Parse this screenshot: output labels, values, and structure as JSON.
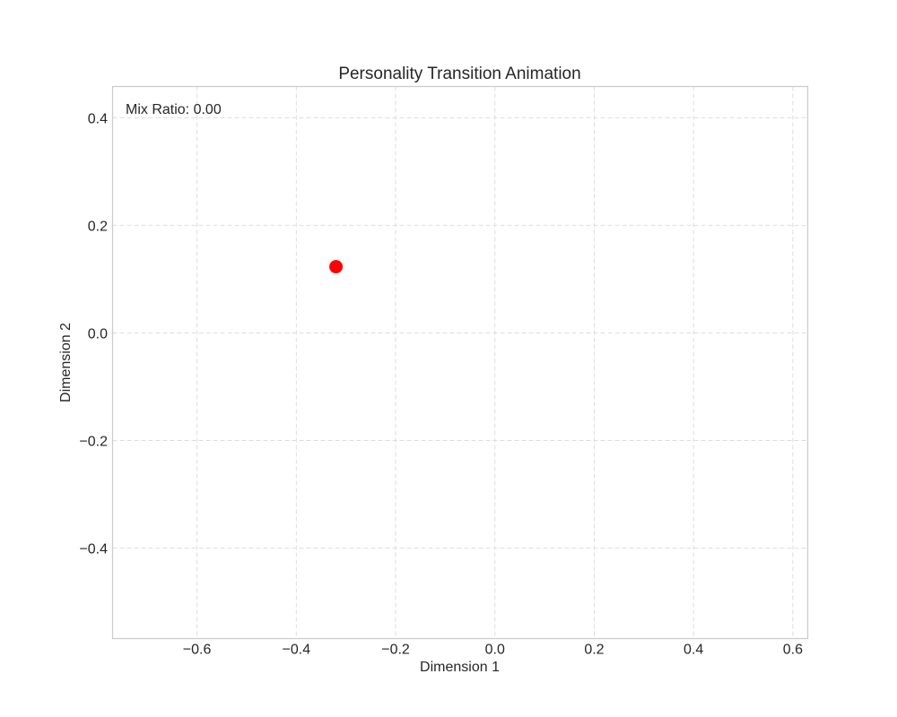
{
  "chart_data": {
    "type": "scatter",
    "title": "Personality Transition Animation",
    "xlabel": "Dimension 1",
    "ylabel": "Dimension 2",
    "xlim": [
      -0.77,
      0.63
    ],
    "ylim": [
      -0.568,
      0.458
    ],
    "xticks": [
      -0.6,
      -0.4,
      -0.2,
      0.0,
      0.2,
      0.4,
      0.6
    ],
    "xtick_labels": [
      "−0.6",
      "−0.4",
      "−0.2",
      "0.0",
      "0.2",
      "0.4",
      "0.6"
    ],
    "yticks": [
      0.4,
      0.2,
      0.0,
      -0.2,
      -0.4
    ],
    "ytick_labels": [
      "0.4",
      "0.2",
      "0.0",
      "−0.2",
      "−0.4"
    ],
    "grid": true,
    "annotation": "Mix Ratio: 0.00",
    "points": [
      {
        "x": -0.32,
        "y": 0.123,
        "color": "#ff0000"
      }
    ]
  }
}
